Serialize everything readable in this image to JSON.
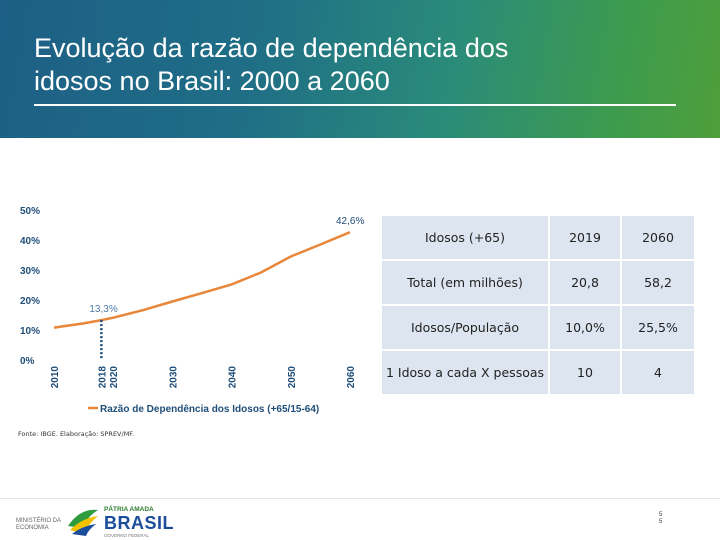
{
  "header": {
    "title_line1": "Evolução da razão de dependência dos",
    "title_line2": "idosos no Brasil: 2000 a 2060"
  },
  "chart_data": {
    "type": "line",
    "title": "",
    "x": [
      2010,
      2015,
      2018,
      2020,
      2025,
      2030,
      2035,
      2040,
      2045,
      2050,
      2055,
      2060
    ],
    "series": [
      {
        "name": "Razão de Dependência dos Idosos (+65/15-64)",
        "values": [
          10.8,
          12.2,
          13.3,
          14.1,
          16.6,
          19.5,
          22.3,
          25.2,
          29.2,
          34.5,
          38.5,
          42.6
        ]
      }
    ],
    "y_tick_labels": [
      "0%",
      "10%",
      "20%",
      "30%",
      "40%",
      "50%"
    ],
    "x_tick_labels": [
      "2010",
      "2018",
      "2020",
      "2030",
      "2040",
      "2050",
      "2060"
    ],
    "ylim": [
      0,
      50
    ],
    "annotations": [
      {
        "x": 2018,
        "y": 13.3,
        "label": "13,3%"
      },
      {
        "x": 2060,
        "y": 42.6,
        "label": "42,6%"
      }
    ],
    "legend": "Razão de Dependência dos Idosos (+65/15-64)",
    "legend_position": "bottom",
    "grid": false,
    "colors": {
      "line": "#e8863a",
      "marker": "#1f4e79",
      "annotation_2018": "#4e79a7"
    }
  },
  "table": {
    "header": [
      "Idosos (+65)",
      "2019",
      "2060"
    ],
    "rows": [
      [
        "Total (em milhões)",
        "20,8",
        "58,2"
      ],
      [
        "Idosos/População",
        "10,0%",
        "25,5%"
      ],
      [
        "1 Idoso a cada X pessoas",
        "10",
        "4"
      ]
    ]
  },
  "source": "Fonte: IBGE. Elaboração: SPREV/MF.",
  "footer": {
    "ministerio_line1": "MINISTÉRIO DA",
    "ministerio_line2": "ECONOMIA",
    "patria": "PÁTRIA AMADA",
    "brasil": "BRASIL",
    "gov": "GOVERNO FEDERAL",
    "page_num": "5",
    "page_num2": "5"
  }
}
